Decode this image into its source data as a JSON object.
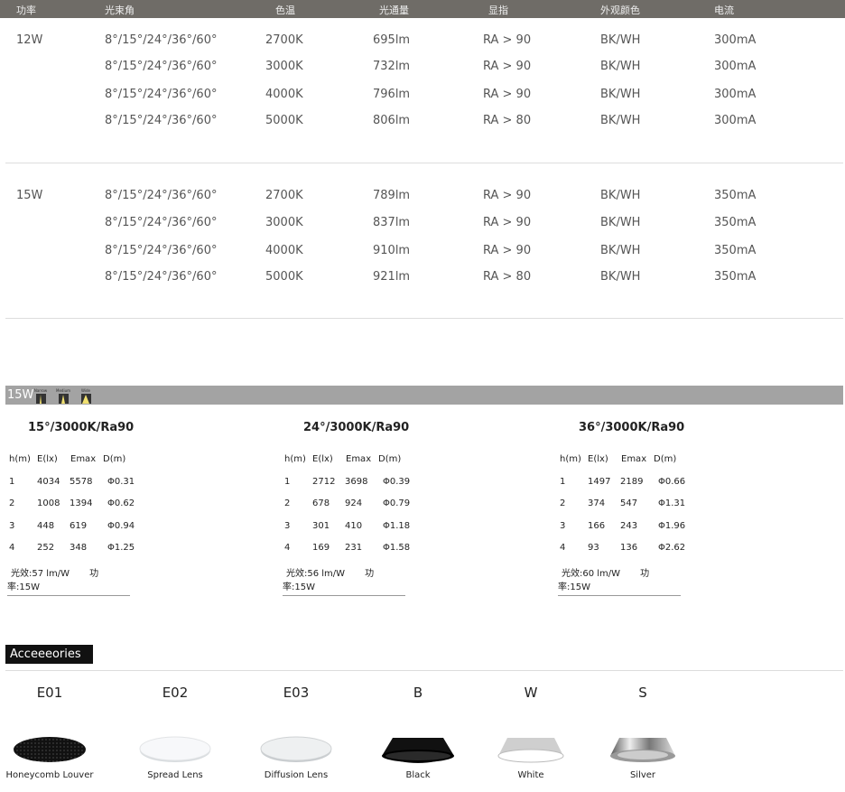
{
  "spec_table": {
    "headers": [
      "功率",
      "光束角",
      "色温",
      "光通量",
      "显指",
      "外观颜色",
      "电流"
    ],
    "groups": [
      {
        "power": "12W",
        "rows": [
          [
            "8°/15°/24°/36°/60°",
            "2700K",
            "695lm",
            "RA > 90",
            "BK/WH",
            "300mA"
          ],
          [
            "8°/15°/24°/36°/60°",
            "3000K",
            "732lm",
            "RA > 90",
            "BK/WH",
            "300mA"
          ],
          [
            "8°/15°/24°/36°/60°",
            "4000K",
            "796lm",
            "RA > 90",
            "BK/WH",
            "300mA"
          ],
          [
            "8°/15°/24°/36°/60°",
            "5000K",
            "806lm",
            "RA > 80",
            "BK/WH",
            "300mA"
          ]
        ]
      },
      {
        "power": "15W",
        "rows": [
          [
            "8°/15°/24°/36°/60°",
            "2700K",
            "789lm",
            "RA > 90",
            "BK/WH",
            "350mA"
          ],
          [
            "8°/15°/24°/36°/60°",
            "3000K",
            "837lm",
            "RA > 90",
            "BK/WH",
            "350mA"
          ],
          [
            "8°/15°/24°/36°/60°",
            "4000K",
            "910lm",
            "RA > 90",
            "BK/WH",
            "350mA"
          ],
          [
            "8°/15°/24°/36°/60°",
            "5000K",
            "921lm",
            "RA > 80",
            "BK/WH",
            "350mA"
          ]
        ]
      }
    ]
  },
  "photometric": {
    "bar_label": "15W",
    "beams": [
      "Narrow",
      "Medium",
      "Wide"
    ],
    "headers": [
      "h(m)",
      "E(lx)",
      "Emax",
      "D(m)"
    ],
    "tables": [
      {
        "title": "15°/3000K/Ra90",
        "rows": [
          [
            "1",
            "4034",
            "5578",
            "Φ0.31"
          ],
          [
            "2",
            "1008",
            "1394",
            "Φ0.62"
          ],
          [
            "3",
            "448",
            "619",
            "Φ0.94"
          ],
          [
            "4",
            "252",
            "348",
            "Φ1.25"
          ]
        ],
        "efficacy": "光效:57 lm/W",
        "power": "功率:15W"
      },
      {
        "title": "24°/3000K/Ra90",
        "rows": [
          [
            "1",
            "2712",
            "3698",
            "Φ0.39"
          ],
          [
            "2",
            "678",
            "924",
            "Φ0.79"
          ],
          [
            "3",
            "301",
            "410",
            "Φ1.18"
          ],
          [
            "4",
            "169",
            "231",
            "Φ1.58"
          ]
        ],
        "efficacy": "光效:56 lm/W",
        "power": "功率:15W"
      },
      {
        "title": "36°/3000K/Ra90",
        "rows": [
          [
            "1",
            "1497",
            "2189",
            "Φ0.66"
          ],
          [
            "2",
            "374",
            "547",
            "Φ1.31"
          ],
          [
            "3",
            "166",
            "243",
            "Φ1.96"
          ],
          [
            "4",
            "93",
            "136",
            "Φ2.62"
          ]
        ],
        "efficacy": "光效:60 lm/W",
        "power": "功率:15W"
      }
    ]
  },
  "accessories": {
    "label": "Acceeeories",
    "items": [
      {
        "code": "E01",
        "name": "Honeycomb Louver",
        "icon": "honeycomb-louver"
      },
      {
        "code": "E02",
        "name": "Spread Lens",
        "icon": "spread-lens"
      },
      {
        "code": "E03",
        "name": "Diffusion Lens",
        "icon": "diffusion-lens"
      },
      {
        "code": "B",
        "name": "Black",
        "icon": "black-reflector"
      },
      {
        "code": "W",
        "name": "White",
        "icon": "white-reflector"
      },
      {
        "code": "S",
        "name": "Silver",
        "icon": "silver-reflector"
      }
    ]
  }
}
